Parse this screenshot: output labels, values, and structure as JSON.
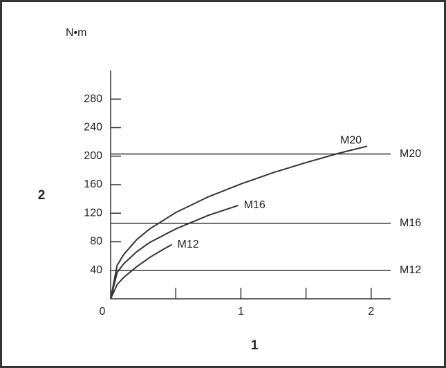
{
  "chart_data": {
    "type": "line",
    "unit_label": "N•m",
    "y_label": "2",
    "x_label": "1",
    "series": [
      {
        "name": "M20",
        "color": "#333333",
        "x": [
          0,
          0.05,
          0.1,
          0.2,
          0.3,
          0.5,
          0.75,
          1.0,
          1.25,
          1.5,
          1.75,
          1.97
        ],
        "values": [
          0,
          47,
          62,
          83,
          98,
          121,
          143,
          161,
          177,
          191,
          204,
          214
        ]
      },
      {
        "name": "M16",
        "color": "#333333",
        "x": [
          0,
          0.05,
          0.1,
          0.2,
          0.3,
          0.5,
          0.75,
          0.98
        ],
        "values": [
          0,
          37,
          49,
          66,
          79,
          98,
          117,
          131
        ]
      },
      {
        "name": "M12",
        "color": "#333333",
        "x": [
          0,
          0.05,
          0.1,
          0.2,
          0.3,
          0.4,
          0.47
        ],
        "values": [
          0,
          20,
          30,
          45,
          58,
          69,
          76
        ]
      }
    ],
    "reference_lines": [
      {
        "name": "M20",
        "value": 203
      },
      {
        "name": "M16",
        "value": 106
      },
      {
        "name": "M12",
        "value": 40
      }
    ],
    "xlim": [
      0,
      2.15
    ],
    "ylim": [
      0,
      320
    ],
    "xticks": [
      0,
      1,
      2
    ],
    "minor_xticks": [
      0.5,
      1.5
    ],
    "yticks": [
      40,
      80,
      120,
      160,
      200,
      240,
      280
    ]
  }
}
